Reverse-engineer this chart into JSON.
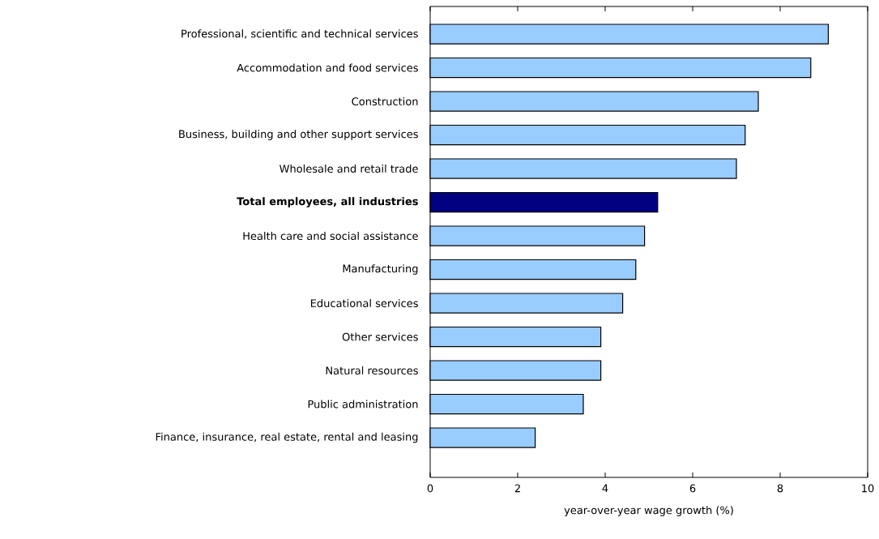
{
  "chart_data": {
    "type": "bar",
    "orientation": "horizontal",
    "xlabel": "year-over-year wage growth (%)",
    "categories": [
      "Professional, scientific and technical services",
      "Accommodation and food services",
      "Construction",
      "Business, building and other support services",
      "Wholesale and retail trade",
      "Total employees, all industries",
      "Health care and social assistance",
      "Manufacturing",
      "Educational services",
      "Other services",
      "Natural resources",
      "Public administration",
      "Finance, insurance, real estate, rental and leasing"
    ],
    "values": [
      9.1,
      8.7,
      7.5,
      7.2,
      7.0,
      5.2,
      4.9,
      4.7,
      4.4,
      3.9,
      3.9,
      3.5,
      2.4
    ],
    "colors": [
      "#99ccff",
      "#99ccff",
      "#99ccff",
      "#99ccff",
      "#99ccff",
      "#000080",
      "#99ccff",
      "#99ccff",
      "#99ccff",
      "#99ccff",
      "#99ccff",
      "#99ccff",
      "#99ccff"
    ],
    "xlim": [
      0,
      10
    ],
    "xticks": [
      0,
      2,
      4,
      6,
      8,
      10
    ],
    "grid": false
  }
}
